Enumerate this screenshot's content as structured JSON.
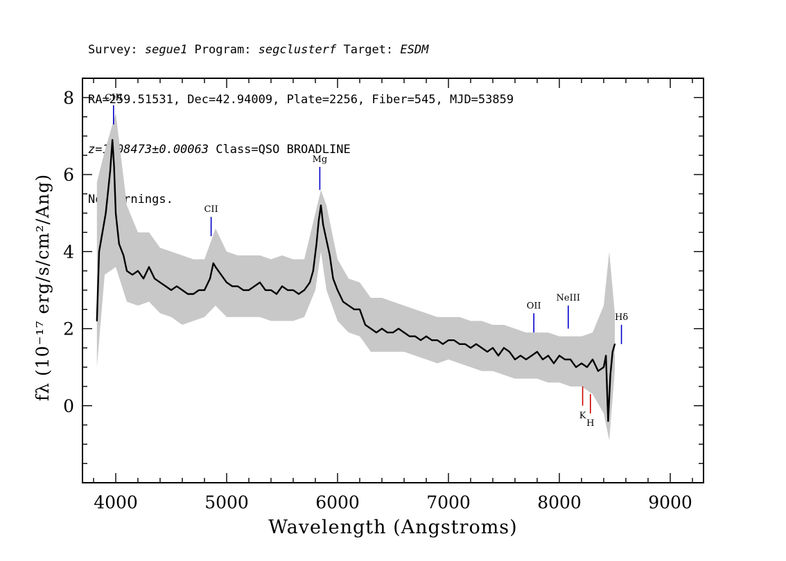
{
  "header": {
    "survey_label": "Survey: ",
    "survey": "segue1",
    "program_label": " Program: ",
    "program": "segclusterf",
    "target_label": " Target: ",
    "target": "ESDM",
    "line2": "RA=259.51531, Dec=42.94009, Plate=2256, Fiber=545, MJD=53859",
    "redshift": "z=1.08473±0.00063",
    "class_text": " Class=QSO BROADLINE",
    "warnings": "No warnings."
  },
  "chart_data": {
    "type": "line",
    "title": "",
    "xlabel": "Wavelength (Angstroms)",
    "ylabel": "fλ (10⁻¹⁷ erg/s/cm²/Ang)",
    "xlim": [
      3700,
      9300
    ],
    "ylim": [
      -2,
      8.5
    ],
    "x_ticks": [
      4000,
      5000,
      6000,
      7000,
      8000,
      9000
    ],
    "y_ticks": [
      0,
      2,
      4,
      6,
      8
    ],
    "grid": false,
    "legend": "none",
    "series": [
      {
        "color": "#000000",
        "role": "smoothed flux",
        "x": [
          3830,
          3850,
          3880,
          3910,
          3950,
          3970,
          3985,
          4000,
          4030,
          4070,
          4100,
          4150,
          4200,
          4250,
          4300,
          4350,
          4400,
          4450,
          4500,
          4550,
          4600,
          4650,
          4700,
          4750,
          4800,
          4850,
          4880,
          4900,
          4950,
          5000,
          5050,
          5100,
          5150,
          5200,
          5250,
          5300,
          5350,
          5400,
          5450,
          5500,
          5550,
          5600,
          5650,
          5700,
          5750,
          5780,
          5810,
          5830,
          5850,
          5870,
          5900,
          5930,
          5960,
          6000,
          6050,
          6100,
          6150,
          6200,
          6250,
          6300,
          6350,
          6400,
          6450,
          6500,
          6550,
          6600,
          6650,
          6700,
          6750,
          6800,
          6850,
          6900,
          6950,
          7000,
          7050,
          7100,
          7150,
          7200,
          7250,
          7300,
          7350,
          7400,
          7450,
          7500,
          7550,
          7600,
          7650,
          7700,
          7750,
          7800,
          7850,
          7900,
          7950,
          8000,
          8050,
          8100,
          8150,
          8200,
          8250,
          8300,
          8350,
          8400,
          8420,
          8440,
          8460,
          8480,
          8500
        ],
        "y": [
          2.2,
          4.0,
          4.5,
          5.0,
          6.1,
          6.9,
          6.2,
          5.0,
          4.2,
          3.9,
          3.5,
          3.4,
          3.5,
          3.3,
          3.6,
          3.3,
          3.2,
          3.1,
          3.0,
          3.1,
          3.0,
          2.9,
          2.9,
          3.0,
          3.0,
          3.3,
          3.7,
          3.6,
          3.4,
          3.2,
          3.1,
          3.1,
          3.0,
          3.0,
          3.1,
          3.2,
          3.0,
          3.0,
          2.9,
          3.1,
          3.0,
          3.0,
          2.9,
          3.0,
          3.2,
          3.5,
          4.2,
          4.8,
          5.2,
          4.7,
          4.3,
          3.9,
          3.3,
          3.0,
          2.7,
          2.6,
          2.5,
          2.5,
          2.1,
          2.0,
          1.9,
          2.0,
          1.9,
          1.9,
          2.0,
          1.9,
          1.8,
          1.8,
          1.7,
          1.8,
          1.7,
          1.7,
          1.6,
          1.7,
          1.7,
          1.6,
          1.6,
          1.5,
          1.6,
          1.5,
          1.4,
          1.5,
          1.3,
          1.5,
          1.4,
          1.2,
          1.3,
          1.2,
          1.3,
          1.4,
          1.2,
          1.3,
          1.1,
          1.3,
          1.2,
          1.2,
          1.0,
          1.1,
          1.0,
          1.2,
          0.9,
          1.0,
          1.3,
          -0.4,
          0.8,
          1.4,
          1.6
        ]
      }
    ],
    "noise_band": {
      "color": "#c8c8c8",
      "role": "raw flux",
      "x": [
        3830,
        3900,
        4000,
        4100,
        4200,
        4300,
        4400,
        4500,
        4600,
        4700,
        4800,
        4900,
        5000,
        5100,
        5200,
        5300,
        5400,
        5500,
        5600,
        5700,
        5800,
        5850,
        5900,
        6000,
        6100,
        6200,
        6300,
        6400,
        6500,
        6600,
        6700,
        6800,
        6900,
        7000,
        7100,
        7200,
        7300,
        7400,
        7500,
        7600,
        7700,
        7800,
        7900,
        8000,
        8100,
        8200,
        8300,
        8400,
        8450,
        8500
      ],
      "low": [
        1.0,
        3.4,
        3.6,
        2.7,
        2.6,
        2.7,
        2.4,
        2.3,
        2.1,
        2.2,
        2.3,
        2.6,
        2.3,
        2.3,
        2.3,
        2.3,
        2.2,
        2.2,
        2.2,
        2.3,
        3.0,
        4.0,
        3.0,
        2.2,
        1.9,
        1.8,
        1.4,
        1.4,
        1.4,
        1.4,
        1.3,
        1.2,
        1.1,
        1.2,
        1.1,
        1.0,
        0.9,
        0.9,
        0.8,
        0.7,
        0.7,
        0.7,
        0.6,
        0.6,
        0.5,
        0.5,
        0.3,
        -0.2,
        -0.9,
        0.9
      ],
      "high": [
        5.8,
        6.6,
        7.6,
        5.2,
        4.5,
        4.5,
        4.1,
        4.0,
        3.9,
        3.8,
        3.8,
        4.6,
        4.0,
        3.9,
        3.9,
        3.9,
        3.8,
        3.9,
        3.8,
        3.8,
        5.0,
        5.6,
        5.2,
        3.8,
        3.3,
        3.2,
        2.8,
        2.8,
        2.7,
        2.6,
        2.5,
        2.4,
        2.3,
        2.3,
        2.3,
        2.2,
        2.2,
        2.1,
        2.1,
        2.0,
        1.9,
        1.9,
        1.9,
        1.8,
        1.8,
        1.8,
        1.9,
        2.6,
        4.0,
        2.4
      ]
    },
    "annotations": [
      {
        "label": "CIII",
        "x": 3980,
        "y_bottom": 7.3,
        "y_top": 7.8,
        "color": "#0000cc"
      },
      {
        "label": "CII",
        "x": 4860,
        "y_bottom": 4.4,
        "y_top": 4.9,
        "color": "#0000cc"
      },
      {
        "label": "Mg",
        "x": 5840,
        "y_bottom": 5.6,
        "y_top": 6.2,
        "color": "#0000cc"
      },
      {
        "label": "OII",
        "x": 7770,
        "y_bottom": 1.9,
        "y_top": 2.4,
        "color": "#0000cc"
      },
      {
        "label": "NeIII",
        "x": 8080,
        "y_bottom": 2.0,
        "y_top": 2.6,
        "color": "#0000cc"
      },
      {
        "label": "Hδ",
        "x": 8560,
        "y_bottom": 1.6,
        "y_top": 2.1,
        "color": "#0000cc"
      },
      {
        "label": "K",
        "x": 8210,
        "y_bottom": 0.0,
        "y_top": 0.5,
        "color": "#cc0000",
        "label_below": true
      },
      {
        "label": "H",
        "x": 8280,
        "y_bottom": -0.2,
        "y_top": 0.3,
        "color": "#cc0000",
        "label_below": true
      }
    ]
  }
}
